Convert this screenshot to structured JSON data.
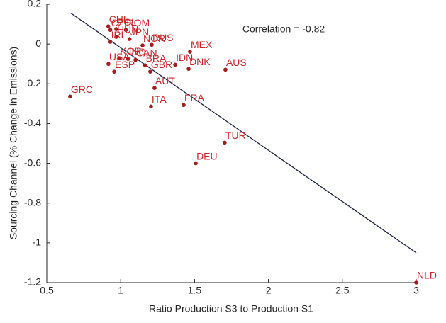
{
  "chart_data": {
    "type": "scatter",
    "xlabel": "Ratio Production S3 to Production S1",
    "ylabel": "Sourcing Channel (% Change in Emissions)",
    "annotation": "Correlation = -0.82",
    "xlim": [
      0.5,
      3
    ],
    "xticks": [
      0.5,
      1,
      1.5,
      2,
      2.5,
      3
    ],
    "ylim": [
      -1.2,
      0.2
    ],
    "yticks": [
      0.2,
      0,
      -0.2,
      -0.4,
      -0.6,
      -0.8,
      -1,
      -1.2
    ],
    "point_color": "#a51c1c",
    "label_color": "#c8282a",
    "line_color": "#1c2040",
    "labels": [
      "GRC",
      "NLD",
      "DEU",
      "TUR",
      "FRA",
      "ITA",
      "AUT",
      "AUS",
      "DNK",
      "IDN",
      "MEX",
      "GBR",
      "BRA",
      "IND",
      "CAN",
      "KOR",
      "USA",
      "ESP",
      "CHL",
      "CZE",
      "POL",
      "ROM",
      "HUN",
      "IRL",
      "JPN",
      "NOR",
      "RUS"
    ],
    "x": [
      0.658,
      3.0,
      1.508,
      1.704,
      1.426,
      1.205,
      1.229,
      1.709,
      1.46,
      1.369,
      1.469,
      1.2,
      1.165,
      1.05,
      1.1,
      0.99,
      0.917,
      0.956,
      0.916,
      0.93,
      0.97,
      1.035,
      0.97,
      0.93,
      1.06,
      1.148,
      1.21
    ],
    "y": [
      -0.264,
      -1.2,
      -0.6,
      -0.496,
      -0.307,
      -0.314,
      -0.221,
      -0.129,
      -0.125,
      -0.104,
      -0.039,
      -0.139,
      -0.107,
      -0.075,
      -0.08,
      -0.071,
      -0.1,
      -0.139,
      0.089,
      0.071,
      0.075,
      0.071,
      0.036,
      0.011,
      0.025,
      -0.007,
      -0.004
    ],
    "fit_line": {
      "x": [
        0.663,
        3.0
      ],
      "y": [
        0.155,
        -1.05
      ]
    }
  }
}
